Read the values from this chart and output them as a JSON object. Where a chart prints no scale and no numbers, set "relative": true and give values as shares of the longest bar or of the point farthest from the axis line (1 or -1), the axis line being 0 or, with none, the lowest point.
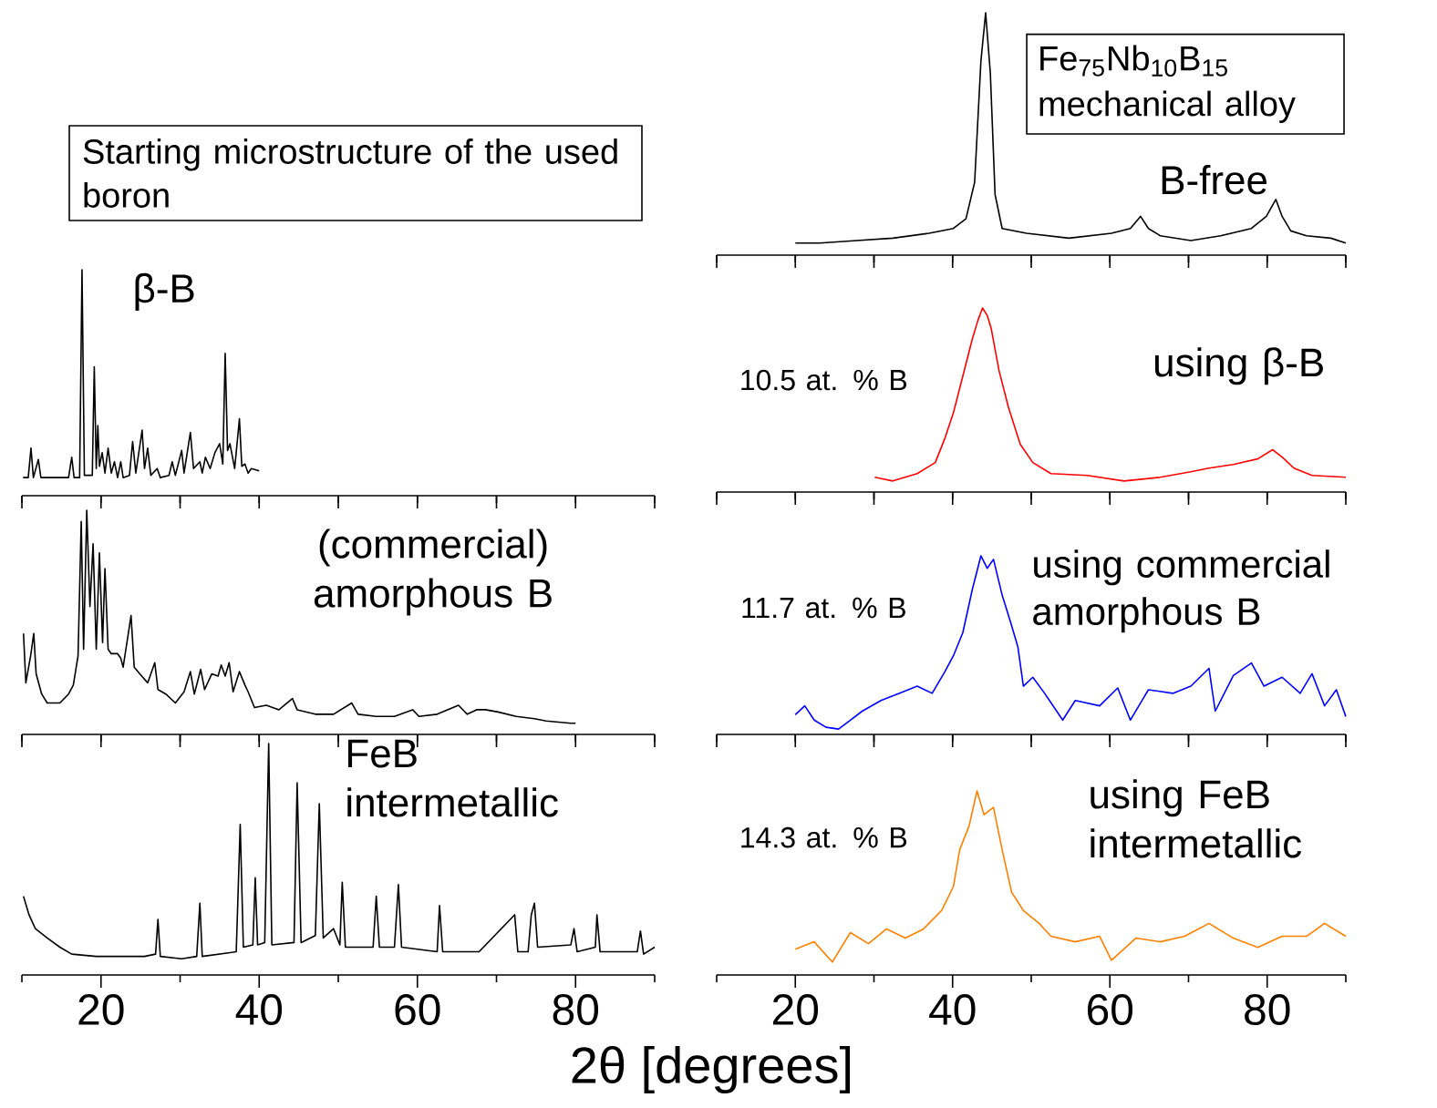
{
  "chart_data": [
    {
      "type": "other",
      "annotations": [
        "Starting microstructure of the used boron"
      ]
    },
    {
      "type": "line",
      "relative": true,
      "xlim": [
        10,
        90
      ],
      "xticks": [
        {
          "value": 10,
          "label": null
        },
        {
          "value": 20,
          "label": null
        },
        {
          "value": 30,
          "label": null
        },
        {
          "value": 40,
          "label": null
        },
        {
          "value": 50,
          "label": null
        },
        {
          "value": 60,
          "label": null
        },
        {
          "value": 70,
          "label": null
        },
        {
          "value": 80,
          "label": null
        },
        {
          "value": 90,
          "label": null
        }
      ],
      "tick_labels": false,
      "annotations": [
        "Fe$_{75}$Nb$_{10}$B$_{15}$ mechanical alloy"
      ],
      "x": [
        20.0,
        23.1,
        27.8,
        32.4,
        37.0,
        40.1,
        41.7,
        42.8,
        43.6,
        44.2,
        44.8,
        45.4,
        46.3,
        49.4,
        54.8,
        60.2,
        62.6,
        63.9,
        64.9,
        66.4,
        70.3,
        74.1,
        78.0,
        79.9,
        81.1,
        81.9,
        83.0,
        85.0,
        88.1,
        90.0
      ],
      "series": [
        {
          "name": "B-free",
          "color": "#000000",
          "values": [
            0.05,
            0.05,
            0.06,
            0.07,
            0.09,
            0.11,
            0.15,
            0.3,
            0.8,
            1.0,
            0.75,
            0.25,
            0.11,
            0.09,
            0.07,
            0.09,
            0.11,
            0.16,
            0.11,
            0.08,
            0.06,
            0.08,
            0.11,
            0.16,
            0.23,
            0.16,
            0.1,
            0.08,
            0.07,
            0.05
          ]
        }
      ]
    },
    {
      "type": "line",
      "relative": true,
      "xlim": [
        10,
        90
      ],
      "xticks": [
        {
          "value": 10,
          "label": null
        },
        {
          "value": 20,
          "label": null
        },
        {
          "value": 30,
          "label": null
        },
        {
          "value": 40,
          "label": null
        },
        {
          "value": 50,
          "label": null
        },
        {
          "value": 60,
          "label": null
        },
        {
          "value": 70,
          "label": null
        },
        {
          "value": 80,
          "label": null
        },
        {
          "value": 90,
          "label": null
        }
      ],
      "tick_labels": false,
      "x": [
        10.15,
        10.8,
        11.15,
        11.45,
        12.08,
        12.4,
        15.9,
        16.3,
        16.6,
        17.3,
        17.6,
        17.9,
        18.9,
        19.15,
        19.4,
        19.6,
        19.8,
        20.15,
        20.5,
        20.9,
        21.3,
        21.7,
        22.1,
        22.5,
        22.8,
        23.6,
        24.0,
        24.4,
        25.2,
        25.5,
        25.9,
        26.3,
        27.1,
        27.5,
        28.6,
        29.0,
        29.4,
        30.2,
        30.5,
        31.3,
        31.7,
        32.5,
        32.8,
        33.2,
        33.8,
        34.4,
        35.0,
        35.4,
        35.7,
        36.0,
        36.3,
        36.9,
        37.5,
        37.8,
        38.2,
        38.6,
        39.0,
        40.0
      ],
      "series": [
        {
          "name": "β-B",
          "color": "#000000",
          "values": [
            0.08,
            0.08,
            0.21,
            0.08,
            0.16,
            0.08,
            0.08,
            0.17,
            0.08,
            0.08,
            1.0,
            0.09,
            0.09,
            0.57,
            0.12,
            0.31,
            0.13,
            0.19,
            0.1,
            0.21,
            0.1,
            0.15,
            0.08,
            0.15,
            0.08,
            0.09,
            0.24,
            0.1,
            0.29,
            0.12,
            0.21,
            0.09,
            0.12,
            0.08,
            0.09,
            0.15,
            0.09,
            0.2,
            0.1,
            0.28,
            0.12,
            0.15,
            0.1,
            0.17,
            0.12,
            0.19,
            0.23,
            0.14,
            0.63,
            0.2,
            0.23,
            0.12,
            0.34,
            0.13,
            0.14,
            0.1,
            0.12,
            0.11
          ]
        }
      ]
    },
    {
      "type": "line",
      "relative": true,
      "xlim": [
        10,
        90
      ],
      "xticks": [
        {
          "value": 10,
          "label": null
        },
        {
          "value": 20,
          "label": null
        },
        {
          "value": 30,
          "label": null
        },
        {
          "value": 40,
          "label": null
        },
        {
          "value": 50,
          "label": null
        },
        {
          "value": 60,
          "label": null
        },
        {
          "value": 70,
          "label": null
        },
        {
          "value": 80,
          "label": null
        },
        {
          "value": 90,
          "label": null
        }
      ],
      "tick_labels": false,
      "annotations": [
        "10.5 at. % B"
      ],
      "x": [
        30.1,
        32.4,
        35.5,
        37.8,
        39.0,
        40.1,
        41.3,
        42.5,
        43.2,
        43.8,
        44.4,
        44.9,
        45.9,
        47.1,
        48.6,
        50.2,
        52.5,
        57.1,
        61.8,
        66.4,
        70.3,
        72.6,
        75.7,
        78.8,
        80.7,
        81.9,
        83.4,
        85.7,
        90.0
      ],
      "series": [
        {
          "name": "using β-B",
          "color": "#ff0000",
          "values": [
            0.08,
            0.06,
            0.1,
            0.16,
            0.29,
            0.43,
            0.63,
            0.83,
            0.93,
            1.0,
            0.96,
            0.89,
            0.66,
            0.46,
            0.26,
            0.16,
            0.1,
            0.09,
            0.06,
            0.08,
            0.11,
            0.13,
            0.15,
            0.18,
            0.23,
            0.19,
            0.13,
            0.09,
            0.08
          ]
        }
      ]
    },
    {
      "type": "line",
      "relative": true,
      "xlim": [
        10,
        90
      ],
      "xticks": [
        {
          "value": 10,
          "label": null
        },
        {
          "value": 20,
          "label": null
        },
        {
          "value": 30,
          "label": null
        },
        {
          "value": 40,
          "label": null
        },
        {
          "value": 50,
          "label": null
        },
        {
          "value": 60,
          "label": null
        },
        {
          "value": 70,
          "label": null
        },
        {
          "value": 80,
          "label": null
        },
        {
          "value": 90,
          "label": null
        }
      ],
      "tick_labels": false,
      "x": [
        10.2,
        10.5,
        11.1,
        11.5,
        11.8,
        12.5,
        13.2,
        14.8,
        15.9,
        16.5,
        17.1,
        17.5,
        17.8,
        18.2,
        18.6,
        19.0,
        19.4,
        19.8,
        20.2,
        20.5,
        20.9,
        21.3,
        22.1,
        22.5,
        22.8,
        23.8,
        24.2,
        24.9,
        25.9,
        26.8,
        27.2,
        28.2,
        29.4,
        30.5,
        31.3,
        31.8,
        32.6,
        33.1,
        34.0,
        34.8,
        35.2,
        35.7,
        36.2,
        36.7,
        37.5,
        38.2,
        38.6,
        39.4,
        40.9,
        42.5,
        44.2,
        44.8,
        47.1,
        49.4,
        51.7,
        52.5,
        54.8,
        57.1,
        59.4,
        60.2,
        62.5,
        65.2,
        66.3,
        67.5,
        68.6,
        70.2,
        72.5,
        74.8,
        76.3,
        79.4,
        80.0
      ],
      "series": [
        {
          "name": "(commercial) amorphous B",
          "color": "#000000",
          "values": [
            0.45,
            0.23,
            0.35,
            0.45,
            0.27,
            0.18,
            0.14,
            0.14,
            0.18,
            0.22,
            0.35,
            0.95,
            0.38,
            1.0,
            0.57,
            0.85,
            0.38,
            0.81,
            0.41,
            0.74,
            0.38,
            0.36,
            0.36,
            0.34,
            0.3,
            0.53,
            0.3,
            0.27,
            0.23,
            0.32,
            0.2,
            0.18,
            0.14,
            0.19,
            0.28,
            0.18,
            0.29,
            0.2,
            0.27,
            0.26,
            0.31,
            0.26,
            0.32,
            0.19,
            0.28,
            0.22,
            0.19,
            0.12,
            0.13,
            0.11,
            0.16,
            0.11,
            0.09,
            0.09,
            0.14,
            0.09,
            0.08,
            0.08,
            0.11,
            0.08,
            0.09,
            0.13,
            0.09,
            0.11,
            0.11,
            0.1,
            0.08,
            0.07,
            0.06,
            0.05,
            0.05
          ]
        }
      ]
    },
    {
      "type": "line",
      "relative": true,
      "xlim": [
        10,
        90
      ],
      "xticks": [
        {
          "value": 10,
          "label": null
        },
        {
          "value": 20,
          "label": null
        },
        {
          "value": 30,
          "label": null
        },
        {
          "value": 40,
          "label": null
        },
        {
          "value": 50,
          "label": null
        },
        {
          "value": 60,
          "label": null
        },
        {
          "value": 70,
          "label": null
        },
        {
          "value": 80,
          "label": null
        },
        {
          "value": 90,
          "label": null
        }
      ],
      "tick_labels": false,
      "annotations": [
        "11.7 at. % B"
      ],
      "x": [
        20.0,
        21.2,
        22.4,
        23.9,
        25.5,
        27.0,
        28.5,
        30.9,
        33.2,
        35.5,
        37.4,
        39.0,
        40.1,
        41.3,
        42.5,
        43.6,
        44.4,
        45.2,
        46.3,
        47.5,
        48.3,
        49.0,
        50.2,
        51.7,
        54.0,
        55.6,
        58.7,
        61.0,
        62.6,
        64.9,
        68.0,
        70.3,
        72.6,
        73.4,
        75.7,
        78.0,
        79.6,
        81.9,
        84.2,
        85.7,
        87.3,
        88.8,
        90.0
      ],
      "series": [
        {
          "name": "using commercial amorphous B",
          "color": "#0000ff",
          "values": [
            0.11,
            0.16,
            0.08,
            0.04,
            0.03,
            0.08,
            0.13,
            0.19,
            0.23,
            0.27,
            0.23,
            0.35,
            0.44,
            0.57,
            0.81,
            1.0,
            0.93,
            0.98,
            0.78,
            0.61,
            0.49,
            0.27,
            0.32,
            0.23,
            0.08,
            0.19,
            0.16,
            0.26,
            0.08,
            0.25,
            0.23,
            0.27,
            0.37,
            0.13,
            0.33,
            0.4,
            0.27,
            0.32,
            0.23,
            0.34,
            0.16,
            0.25,
            0.1
          ]
        }
      ]
    },
    {
      "type": "line",
      "relative": true,
      "xlim": [
        10,
        90
      ],
      "xticks": [
        {
          "value": 10,
          "label": null
        },
        20,
        {
          "value": 30,
          "label": null
        },
        40,
        {
          "value": 50,
          "label": null
        },
        60,
        {
          "value": 70,
          "label": null
        },
        80,
        {
          "value": 90,
          "label": null
        }
      ],
      "tick_labels": "x",
      "xlabel": "2θ [degrees]",
      "x": [
        10.2,
        10.9,
        11.7,
        13.2,
        14.8,
        16.3,
        19.4,
        22.5,
        25.5,
        26.9,
        27.2,
        27.5,
        30.2,
        32.1,
        32.5,
        32.8,
        37.1,
        37.6,
        38.0,
        39.2,
        39.5,
        39.8,
        40.7,
        41.2,
        41.6,
        44.4,
        44.8,
        45.3,
        47.1,
        47.6,
        48.1,
        49.4,
        50.2,
        50.5,
        50.9,
        54.4,
        54.8,
        55.2,
        57.1,
        57.6,
        58.0,
        62.5,
        62.8,
        63.2,
        67.8,
        72.3,
        72.7,
        74.0,
        74.4,
        74.8,
        75.2,
        79.4,
        79.8,
        80.2,
        82.5,
        82.7,
        83.1,
        87.8,
        88.2,
        88.6,
        90.0
      ],
      "series": [
        {
          "name": "FeB intermetallic",
          "color": "#000000",
          "values": [
            0.34,
            0.26,
            0.2,
            0.16,
            0.12,
            0.09,
            0.08,
            0.08,
            0.08,
            0.09,
            0.24,
            0.08,
            0.07,
            0.08,
            0.31,
            0.08,
            0.1,
            0.65,
            0.12,
            0.13,
            0.42,
            0.13,
            0.14,
            1.0,
            0.13,
            0.14,
            0.83,
            0.14,
            0.17,
            0.74,
            0.16,
            0.2,
            0.13,
            0.4,
            0.12,
            0.12,
            0.34,
            0.12,
            0.12,
            0.39,
            0.12,
            0.1,
            0.3,
            0.1,
            0.1,
            0.26,
            0.1,
            0.1,
            0.26,
            0.31,
            0.12,
            0.13,
            0.2,
            0.1,
            0.12,
            0.26,
            0.1,
            0.1,
            0.19,
            0.09,
            0.12
          ]
        }
      ]
    },
    {
      "type": "line",
      "relative": true,
      "xlim": [
        10,
        90
      ],
      "xticks": [
        {
          "value": 10,
          "label": null
        },
        20,
        {
          "value": 30,
          "label": null
        },
        40,
        {
          "value": 50,
          "label": null
        },
        60,
        {
          "value": 70,
          "label": null
        },
        80,
        {
          "value": 90,
          "label": null
        }
      ],
      "tick_labels": "x",
      "annotations": [
        "14.3 at. % B"
      ],
      "x": [
        20.0,
        22.4,
        24.7,
        27.0,
        29.3,
        31.6,
        34.0,
        36.3,
        38.6,
        40.1,
        40.9,
        42.1,
        43.1,
        44.0,
        45.2,
        46.3,
        47.5,
        49.0,
        51.0,
        52.5,
        55.6,
        58.7,
        60.2,
        63.3,
        66.4,
        69.5,
        72.6,
        75.7,
        78.8,
        81.9,
        85.0,
        87.3,
        90.0
      ],
      "series": [
        {
          "name": "using FeB intermetallic",
          "color": "#ff8000",
          "values": [
            0.14,
            0.18,
            0.07,
            0.23,
            0.17,
            0.25,
            0.2,
            0.25,
            0.35,
            0.48,
            0.68,
            0.81,
            1.0,
            0.87,
            0.91,
            0.68,
            0.45,
            0.35,
            0.28,
            0.21,
            0.18,
            0.21,
            0.08,
            0.2,
            0.18,
            0.21,
            0.28,
            0.2,
            0.15,
            0.21,
            0.21,
            0.28,
            0.21
          ]
        }
      ]
    }
  ]
}
